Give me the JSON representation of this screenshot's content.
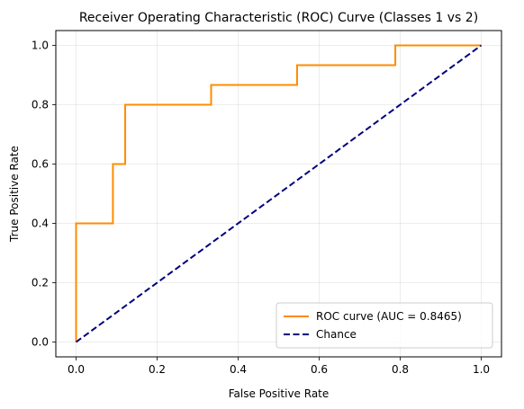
{
  "chart_data": {
    "type": "line",
    "title": "Receiver Operating Characteristic (ROC) Curve (Classes 1 vs 2)",
    "xlabel": "False Positive Rate",
    "ylabel": "True Positive Rate",
    "xlim": [
      -0.05,
      1.05
    ],
    "ylim": [
      -0.05,
      1.05
    ],
    "xticks": [
      0.0,
      0.2,
      0.4,
      0.6,
      0.8,
      1.0
    ],
    "yticks": [
      0.0,
      0.2,
      0.4,
      0.6,
      0.8,
      1.0
    ],
    "xtick_labels": [
      "0.0",
      "0.2",
      "0.4",
      "0.6",
      "0.8",
      "1.0"
    ],
    "ytick_labels": [
      "0.0",
      "0.2",
      "0.4",
      "0.6",
      "0.8",
      "1.0"
    ],
    "grid": true,
    "legend_position": "lower-right",
    "series": [
      {
        "name": "ROC curve (AUC = 0.8465)",
        "color": "#ff8c00",
        "style": "solid",
        "x": [
          0.0,
          0.0,
          0.0909,
          0.0909,
          0.1212,
          0.1212,
          0.3333,
          0.3333,
          0.5455,
          0.5455,
          0.7879,
          0.7879,
          1.0
        ],
        "y": [
          0.0,
          0.4,
          0.4,
          0.6,
          0.6,
          0.8,
          0.8,
          0.8667,
          0.8667,
          0.9333,
          0.9333,
          1.0,
          1.0
        ]
      },
      {
        "name": "Chance",
        "color": "#000080",
        "style": "dashed",
        "x": [
          0.0,
          1.0
        ],
        "y": [
          0.0,
          1.0
        ]
      }
    ]
  }
}
